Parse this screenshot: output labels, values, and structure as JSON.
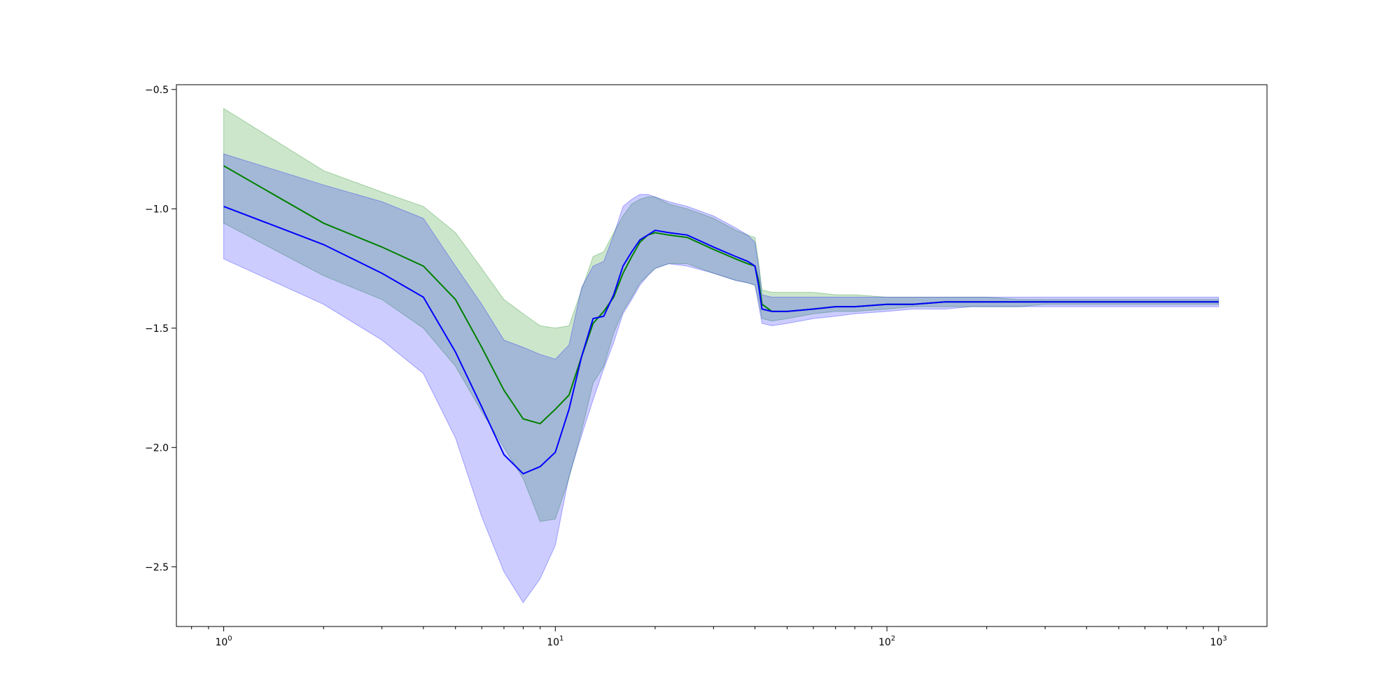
{
  "chart_data": {
    "type": "line",
    "title": "",
    "xlabel": "",
    "ylabel": "",
    "xscale": "log",
    "xlim": [
      0.72,
      1400
    ],
    "ylim": [
      -2.75,
      -0.48
    ],
    "grid": false,
    "legend": "none",
    "x_ticks": [
      {
        "base": "10",
        "exp": "0",
        "value": 1
      },
      {
        "base": "10",
        "exp": "1",
        "value": 10
      },
      {
        "base": "10",
        "exp": "2",
        "value": 100
      },
      {
        "base": "10",
        "exp": "3",
        "value": 1000
      }
    ],
    "y_ticks": [
      {
        "label": "−0.5",
        "value": -0.5
      },
      {
        "label": "−1.0",
        "value": -1.0
      },
      {
        "label": "−1.5",
        "value": -1.5
      },
      {
        "label": "−2.0",
        "value": -2.0
      },
      {
        "label": "−2.5",
        "value": -2.5
      }
    ],
    "series": [
      {
        "color": "#008000",
        "band_color": "#008000",
        "band_opacity": 0.2,
        "x": [
          1,
          2,
          3,
          4,
          5,
          6,
          7,
          8,
          9,
          10,
          11,
          12,
          13,
          14,
          15,
          16,
          17,
          18,
          19,
          20,
          22,
          25,
          30,
          35,
          38,
          40,
          41,
          42,
          45,
          50,
          60,
          70,
          80,
          100,
          120,
          150,
          180,
          200,
          250,
          300,
          400,
          500,
          700,
          1000
        ],
        "mean": [
          -0.82,
          -1.06,
          -1.16,
          -1.24,
          -1.38,
          -1.58,
          -1.76,
          -1.88,
          -1.9,
          -1.84,
          -1.78,
          -1.62,
          -1.48,
          -1.43,
          -1.37,
          -1.27,
          -1.2,
          -1.14,
          -1.11,
          -1.1,
          -1.11,
          -1.12,
          -1.17,
          -1.21,
          -1.23,
          -1.24,
          -1.3,
          -1.4,
          -1.43,
          -1.43,
          -1.42,
          -1.41,
          -1.41,
          -1.4,
          -1.4,
          -1.39,
          -1.39,
          -1.39,
          -1.39,
          -1.39,
          -1.39,
          -1.39,
          -1.39,
          -1.39
        ],
        "lower": [
          -1.06,
          -1.28,
          -1.38,
          -1.5,
          -1.66,
          -1.85,
          -2.0,
          -2.13,
          -2.31,
          -2.3,
          -2.13,
          -1.93,
          -1.73,
          -1.66,
          -1.52,
          -1.43,
          -1.37,
          -1.31,
          -1.28,
          -1.25,
          -1.23,
          -1.23,
          -1.27,
          -1.3,
          -1.31,
          -1.32,
          -1.38,
          -1.46,
          -1.47,
          -1.46,
          -1.44,
          -1.43,
          -1.43,
          -1.42,
          -1.41,
          -1.41,
          -1.41,
          -1.41,
          -1.41,
          -1.4,
          -1.4,
          -1.4,
          -1.4,
          -1.4
        ],
        "upper": [
          -0.58,
          -0.84,
          -0.93,
          -0.99,
          -1.1,
          -1.25,
          -1.38,
          -1.44,
          -1.49,
          -1.5,
          -1.49,
          -1.34,
          -1.2,
          -1.18,
          -1.1,
          -1.03,
          -0.98,
          -0.96,
          -0.95,
          -0.95,
          -0.98,
          -1.0,
          -1.04,
          -1.09,
          -1.11,
          -1.12,
          -1.22,
          -1.34,
          -1.35,
          -1.35,
          -1.35,
          -1.36,
          -1.36,
          -1.37,
          -1.37,
          -1.37,
          -1.37,
          -1.37,
          -1.38,
          -1.38,
          -1.38,
          -1.38,
          -1.38,
          -1.38
        ]
      },
      {
        "color": "#0000ff",
        "band_color": "#0000ff",
        "band_opacity": 0.2,
        "x": [
          1,
          2,
          3,
          4,
          5,
          6,
          7,
          8,
          9,
          10,
          11,
          12,
          13,
          14,
          15,
          16,
          17,
          18,
          19,
          20,
          22,
          25,
          30,
          35,
          38,
          40,
          41,
          42,
          45,
          50,
          60,
          70,
          80,
          100,
          120,
          150,
          180,
          200,
          250,
          300,
          400,
          500,
          700,
          1000
        ],
        "mean": [
          -0.99,
          -1.15,
          -1.27,
          -1.37,
          -1.6,
          -1.83,
          -2.03,
          -2.11,
          -2.08,
          -2.02,
          -1.84,
          -1.62,
          -1.46,
          -1.45,
          -1.36,
          -1.24,
          -1.18,
          -1.13,
          -1.11,
          -1.09,
          -1.1,
          -1.11,
          -1.16,
          -1.2,
          -1.22,
          -1.24,
          -1.32,
          -1.42,
          -1.43,
          -1.43,
          -1.42,
          -1.41,
          -1.41,
          -1.4,
          -1.4,
          -1.39,
          -1.39,
          -1.39,
          -1.39,
          -1.39,
          -1.39,
          -1.39,
          -1.39,
          -1.39
        ],
        "lower": [
          -1.21,
          -1.4,
          -1.55,
          -1.69,
          -1.96,
          -2.29,
          -2.52,
          -2.65,
          -2.55,
          -2.41,
          -2.12,
          -1.95,
          -1.8,
          -1.67,
          -1.56,
          -1.44,
          -1.38,
          -1.32,
          -1.28,
          -1.25,
          -1.23,
          -1.24,
          -1.27,
          -1.3,
          -1.31,
          -1.32,
          -1.4,
          -1.48,
          -1.49,
          -1.48,
          -1.46,
          -1.45,
          -1.44,
          -1.43,
          -1.42,
          -1.42,
          -1.41,
          -1.41,
          -1.41,
          -1.41,
          -1.41,
          -1.41,
          -1.41,
          -1.41
        ],
        "upper": [
          -0.77,
          -0.9,
          -0.97,
          -1.04,
          -1.24,
          -1.4,
          -1.55,
          -1.58,
          -1.61,
          -1.63,
          -1.57,
          -1.33,
          -1.24,
          -1.22,
          -1.11,
          -0.99,
          -0.96,
          -0.94,
          -0.94,
          -0.95,
          -0.97,
          -0.99,
          -1.03,
          -1.08,
          -1.11,
          -1.14,
          -1.24,
          -1.36,
          -1.37,
          -1.37,
          -1.37,
          -1.37,
          -1.37,
          -1.37,
          -1.37,
          -1.37,
          -1.37,
          -1.37,
          -1.37,
          -1.37,
          -1.37,
          -1.37,
          -1.37,
          -1.37
        ]
      }
    ]
  }
}
